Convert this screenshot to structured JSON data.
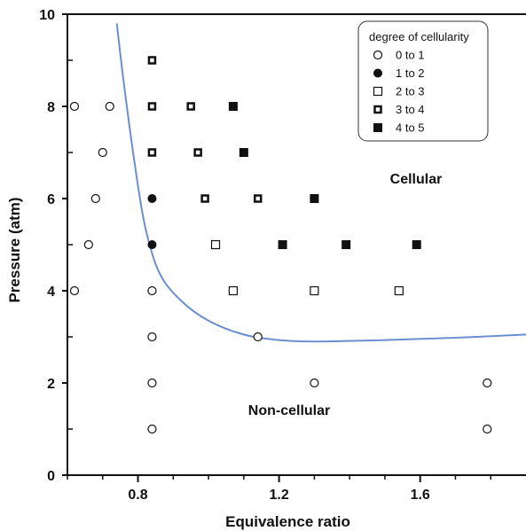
{
  "chart_data": {
    "type": "scatter",
    "xlabel": "Equivalence ratio",
    "ylabel": "Pressure (atm)",
    "xlim": [
      0.6,
      1.9
    ],
    "ylim": [
      0,
      10
    ],
    "x_ticks": [
      0.8,
      1.2,
      1.6
    ],
    "x_minor_ticks": [
      0.6,
      0.7,
      0.9,
      1.0,
      1.1,
      1.3,
      1.4,
      1.5,
      1.7,
      1.8
    ],
    "y_ticks": [
      0,
      2,
      4,
      6,
      8,
      10
    ],
    "y_minor_ticks": [
      1,
      3,
      5,
      7,
      9
    ],
    "grid": false,
    "legend": {
      "title": "degree of cellularity",
      "placement": "top-right",
      "entries": [
        "0 to 1",
        "1 to 2",
        "2 to 3",
        "3 to 4",
        "4 to 5"
      ]
    },
    "annotations": [
      "Cellular",
      "Non-cellular"
    ],
    "boundary_color": "#6a8fd0",
    "series": [
      {
        "name": "0 to 1",
        "marker": "open-circle",
        "points": [
          [
            0.62,
            8
          ],
          [
            0.72,
            8
          ],
          [
            0.7,
            7
          ],
          [
            0.68,
            6
          ],
          [
            0.66,
            5
          ],
          [
            0.62,
            4
          ],
          [
            0.84,
            4
          ],
          [
            0.84,
            3
          ],
          [
            1.14,
            3
          ],
          [
            0.84,
            2
          ],
          [
            1.3,
            2
          ],
          [
            1.79,
            2
          ],
          [
            0.84,
            1
          ],
          [
            1.79,
            1
          ]
        ]
      },
      {
        "name": "1 to 2",
        "marker": "filled-circle",
        "points": [
          [
            0.84,
            6
          ],
          [
            0.84,
            5
          ]
        ]
      },
      {
        "name": "2 to 3",
        "marker": "open-square",
        "points": [
          [
            1.02,
            5
          ],
          [
            1.07,
            4
          ],
          [
            1.3,
            4
          ],
          [
            1.54,
            4
          ]
        ]
      },
      {
        "name": "3 to 4",
        "marker": "thick-square",
        "points": [
          [
            0.84,
            9
          ],
          [
            0.84,
            8
          ],
          [
            0.95,
            8
          ],
          [
            0.84,
            7
          ],
          [
            0.97,
            7
          ],
          [
            0.99,
            6
          ],
          [
            1.14,
            6
          ]
        ]
      },
      {
        "name": "4 to 5",
        "marker": "filled-square",
        "points": [
          [
            1.07,
            8
          ],
          [
            1.1,
            7
          ],
          [
            1.3,
            6
          ],
          [
            1.21,
            5
          ],
          [
            1.39,
            5
          ],
          [
            1.59,
            5
          ]
        ]
      }
    ],
    "boundary_curve": [
      [
        0.74,
        9.8
      ],
      [
        0.76,
        8.5
      ],
      [
        0.79,
        6.8
      ],
      [
        0.82,
        5.4
      ],
      [
        0.86,
        4.4
      ],
      [
        0.92,
        3.8
      ],
      [
        1.0,
        3.35
      ],
      [
        1.1,
        3.05
      ],
      [
        1.2,
        2.93
      ],
      [
        1.3,
        2.9
      ],
      [
        1.5,
        2.93
      ],
      [
        1.7,
        2.98
      ],
      [
        1.9,
        3.05
      ]
    ]
  }
}
